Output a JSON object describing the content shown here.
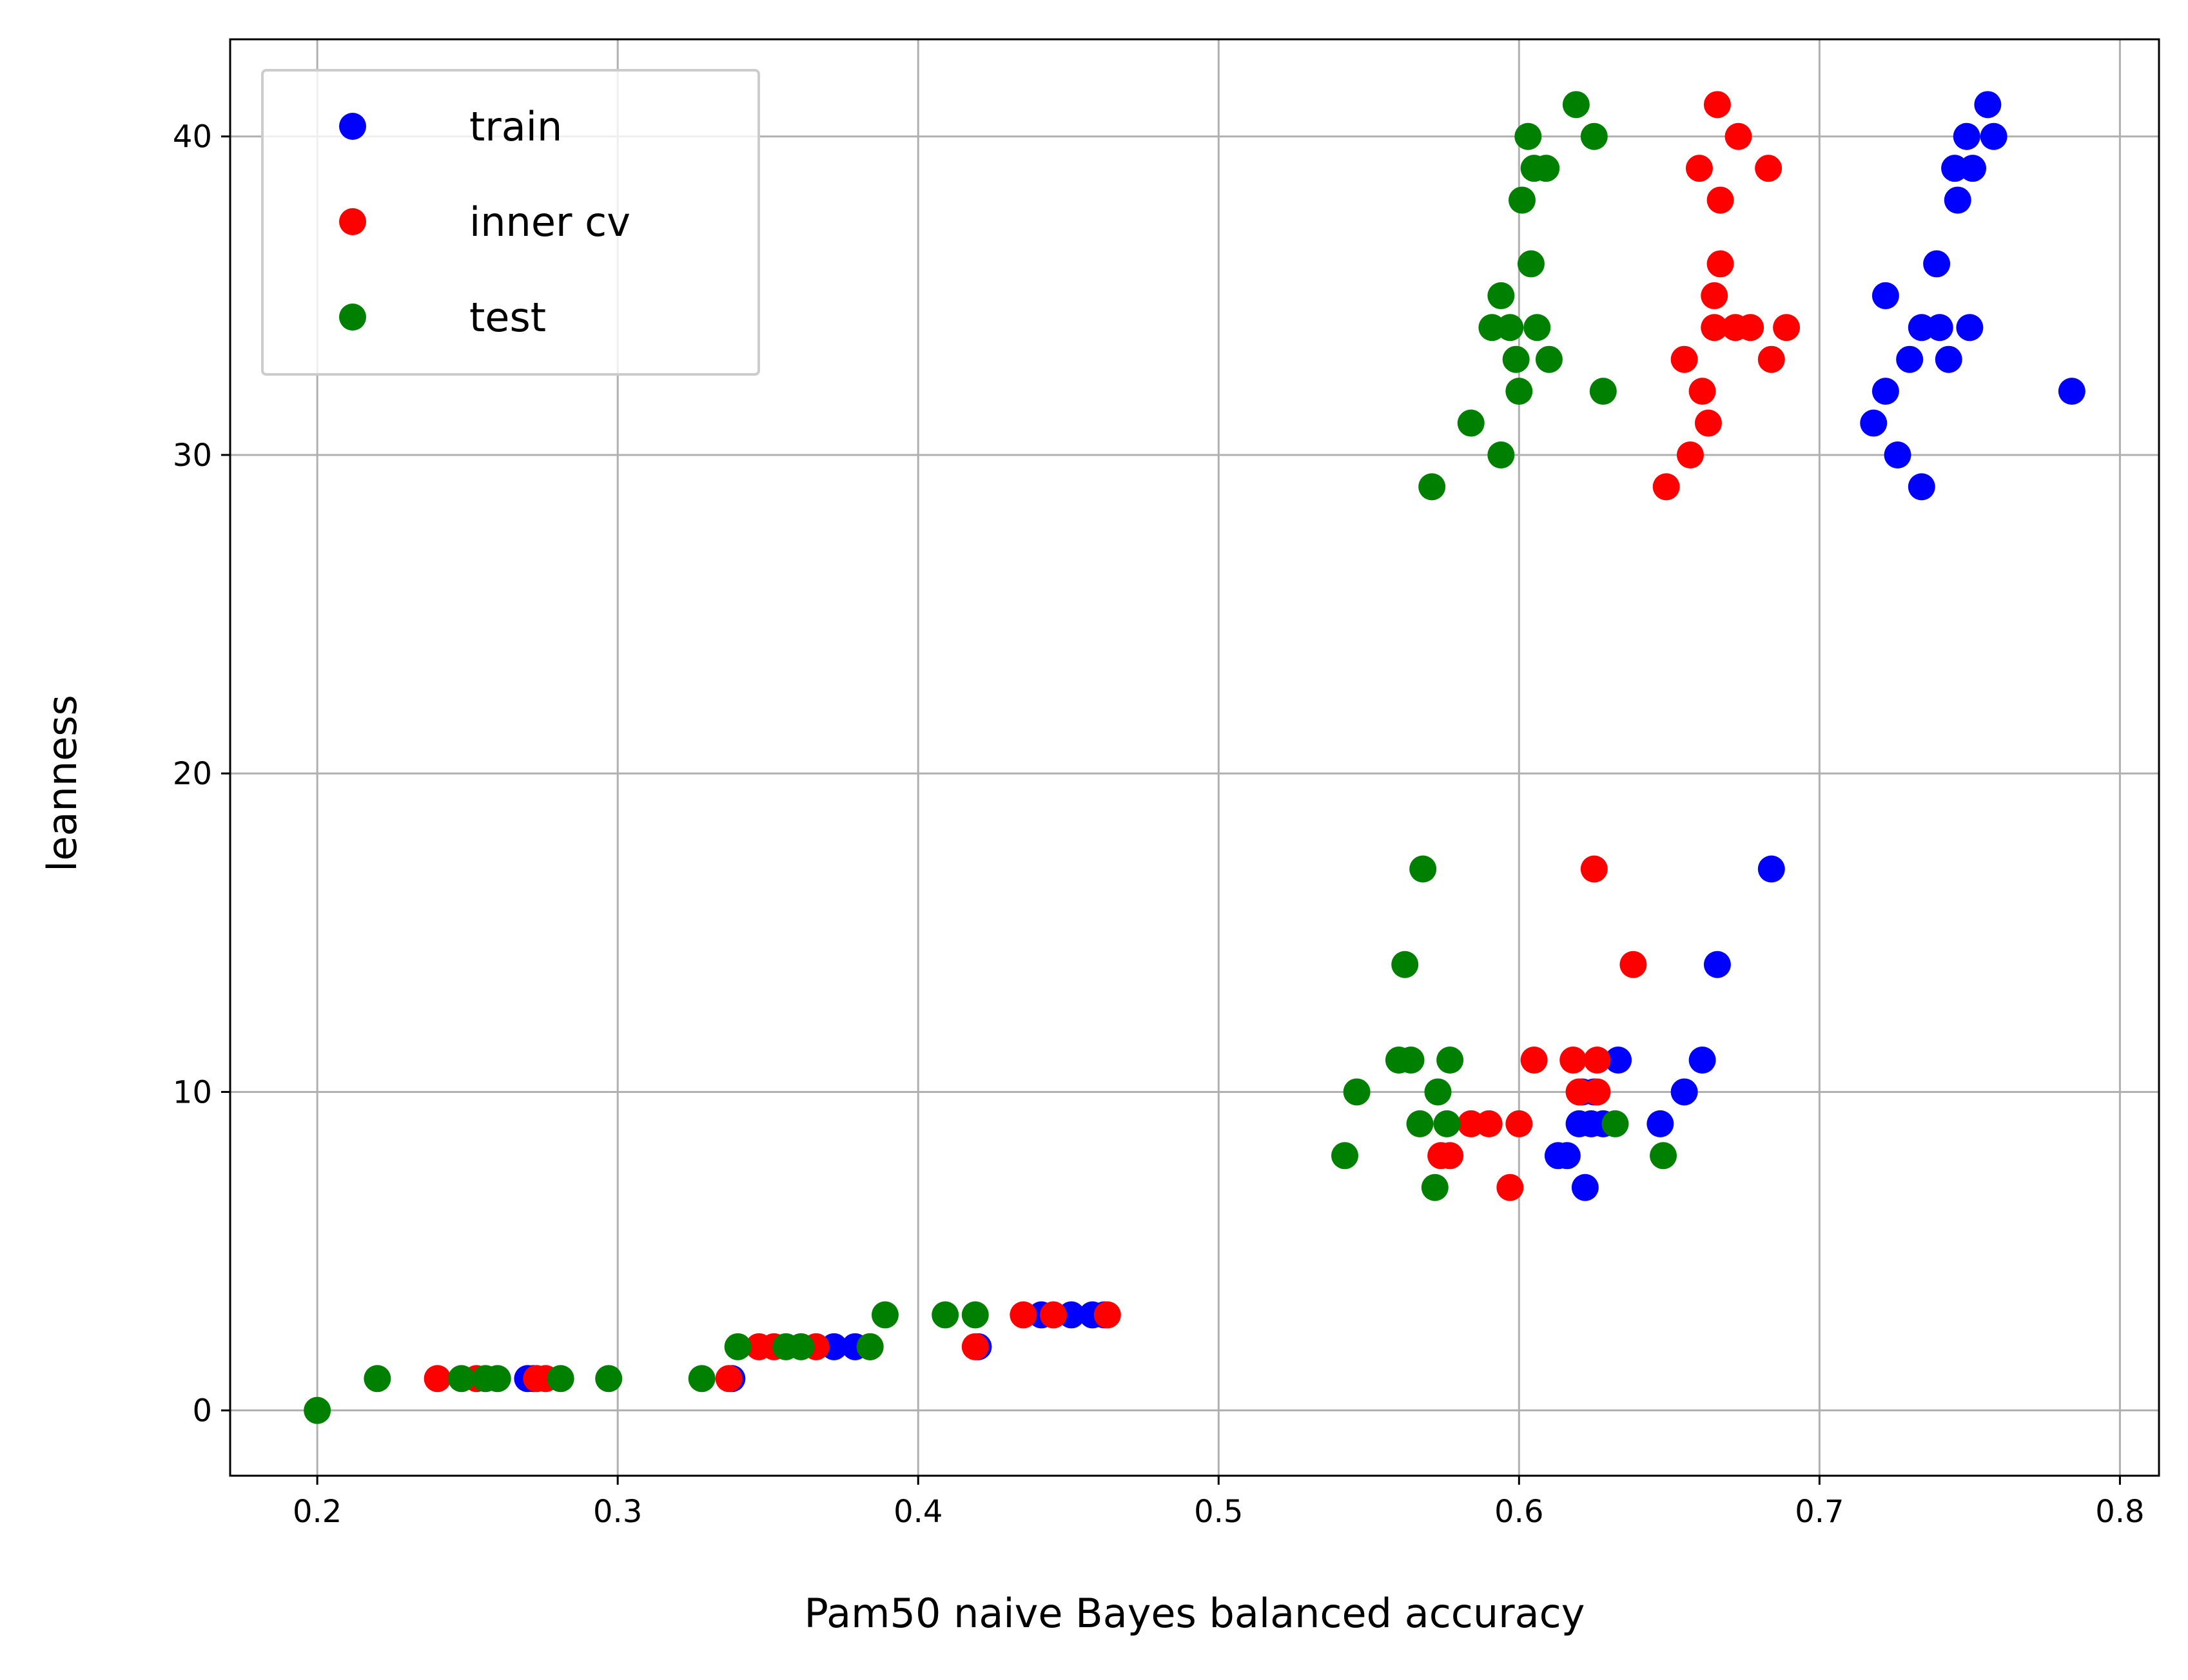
{
  "chart_data": {
    "type": "scatter",
    "title": "",
    "xlabel": "Pam50 naive Bayes balanced accuracy",
    "ylabel": "leanness",
    "xlim": [
      0.171,
      0.813
    ],
    "ylim": [
      -2.05,
      43.05
    ],
    "xticks": [
      0.2,
      0.3,
      0.4,
      0.5,
      0.6,
      0.7,
      0.8
    ],
    "xtick_labels": [
      "0.2",
      "0.3",
      "0.4",
      "0.5",
      "0.6",
      "0.7",
      "0.8"
    ],
    "yticks": [
      0,
      10,
      20,
      30,
      40
    ],
    "ytick_labels": [
      "0",
      "10",
      "20",
      "30",
      "40"
    ],
    "grid": true,
    "legend_position": "top-left",
    "series": [
      {
        "name": "train",
        "color": "#0000ff",
        "points": [
          [
            0.27,
            1
          ],
          [
            0.272,
            1
          ],
          [
            0.338,
            1
          ],
          [
            0.372,
            2
          ],
          [
            0.379,
            2
          ],
          [
            0.42,
            2
          ],
          [
            0.441,
            3
          ],
          [
            0.451,
            3
          ],
          [
            0.458,
            3
          ],
          [
            0.462,
            3
          ],
          [
            0.613,
            8
          ],
          [
            0.616,
            8
          ],
          [
            0.62,
            9
          ],
          [
            0.624,
            9
          ],
          [
            0.628,
            9
          ],
          [
            0.647,
            9
          ],
          [
            0.622,
            7
          ],
          [
            0.621,
            10
          ],
          [
            0.625,
            10
          ],
          [
            0.655,
            10
          ],
          [
            0.633,
            11
          ],
          [
            0.661,
            11
          ],
          [
            0.666,
            14
          ],
          [
            0.684,
            17
          ],
          [
            0.734,
            29
          ],
          [
            0.726,
            30
          ],
          [
            0.718,
            31
          ],
          [
            0.722,
            32
          ],
          [
            0.784,
            32
          ],
          [
            0.73,
            33
          ],
          [
            0.743,
            33
          ],
          [
            0.734,
            34
          ],
          [
            0.74,
            34
          ],
          [
            0.75,
            34
          ],
          [
            0.722,
            35
          ],
          [
            0.739,
            36
          ],
          [
            0.746,
            38
          ],
          [
            0.745,
            39
          ],
          [
            0.751,
            39
          ],
          [
            0.749,
            40
          ],
          [
            0.758,
            40
          ],
          [
            0.756,
            41
          ]
        ]
      },
      {
        "name": "inner cv",
        "color": "#ff0000",
        "points": [
          [
            0.24,
            1
          ],
          [
            0.253,
            1
          ],
          [
            0.273,
            1
          ],
          [
            0.276,
            1
          ],
          [
            0.337,
            1
          ],
          [
            0.347,
            2
          ],
          [
            0.352,
            2
          ],
          [
            0.366,
            2
          ],
          [
            0.384,
            2
          ],
          [
            0.419,
            2
          ],
          [
            0.435,
            3
          ],
          [
            0.445,
            3
          ],
          [
            0.463,
            3
          ],
          [
            0.597,
            7
          ],
          [
            0.574,
            8
          ],
          [
            0.577,
            8
          ],
          [
            0.584,
            9
          ],
          [
            0.59,
            9
          ],
          [
            0.6,
            9
          ],
          [
            0.62,
            10
          ],
          [
            0.626,
            10
          ],
          [
            0.605,
            11
          ],
          [
            0.618,
            11
          ],
          [
            0.626,
            11
          ],
          [
            0.638,
            14
          ],
          [
            0.625,
            17
          ],
          [
            0.649,
            29
          ],
          [
            0.657,
            30
          ],
          [
            0.663,
            31
          ],
          [
            0.661,
            32
          ],
          [
            0.655,
            33
          ],
          [
            0.684,
            33
          ],
          [
            0.665,
            34
          ],
          [
            0.672,
            34
          ],
          [
            0.677,
            34
          ],
          [
            0.689,
            34
          ],
          [
            0.665,
            35
          ],
          [
            0.667,
            36
          ],
          [
            0.667,
            38
          ],
          [
            0.66,
            39
          ],
          [
            0.683,
            39
          ],
          [
            0.673,
            40
          ],
          [
            0.666,
            41
          ]
        ]
      },
      {
        "name": "test",
        "color": "#008000",
        "points": [
          [
            0.2,
            0
          ],
          [
            0.22,
            1
          ],
          [
            0.248,
            1
          ],
          [
            0.256,
            1
          ],
          [
            0.26,
            1
          ],
          [
            0.281,
            1
          ],
          [
            0.297,
            1
          ],
          [
            0.328,
            1
          ],
          [
            0.34,
            2
          ],
          [
            0.356,
            2
          ],
          [
            0.361,
            2
          ],
          [
            0.384,
            2
          ],
          [
            0.389,
            3
          ],
          [
            0.409,
            3
          ],
          [
            0.419,
            3
          ],
          [
            0.572,
            7
          ],
          [
            0.542,
            8
          ],
          [
            0.648,
            8
          ],
          [
            0.567,
            9
          ],
          [
            0.576,
            9
          ],
          [
            0.632,
            9
          ],
          [
            0.546,
            10
          ],
          [
            0.573,
            10
          ],
          [
            0.56,
            11
          ],
          [
            0.564,
            11
          ],
          [
            0.577,
            11
          ],
          [
            0.562,
            14
          ],
          [
            0.568,
            17
          ],
          [
            0.571,
            29
          ],
          [
            0.594,
            30
          ],
          [
            0.584,
            31
          ],
          [
            0.6,
            32
          ],
          [
            0.628,
            32
          ],
          [
            0.599,
            33
          ],
          [
            0.61,
            33
          ],
          [
            0.591,
            34
          ],
          [
            0.597,
            34
          ],
          [
            0.606,
            34
          ],
          [
            0.594,
            35
          ],
          [
            0.604,
            36
          ],
          [
            0.601,
            38
          ],
          [
            0.605,
            39
          ],
          [
            0.609,
            39
          ],
          [
            0.603,
            40
          ],
          [
            0.625,
            40
          ],
          [
            0.619,
            41
          ]
        ]
      }
    ]
  }
}
